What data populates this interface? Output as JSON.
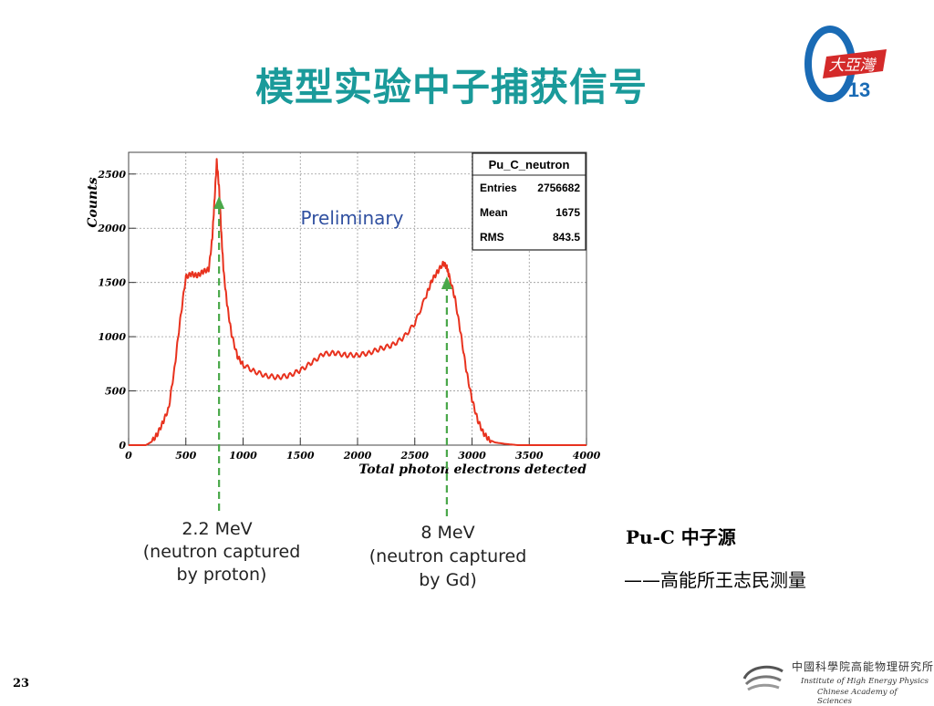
{
  "slide": {
    "title": "模型实验中子捕获信号",
    "page_number": "23",
    "source_label": "Pu-C 中子源",
    "credit": "——高能所王志民测量"
  },
  "logo": {
    "brand_text": "大亞灣",
    "number": "13",
    "theta_color": "#1a6bb5",
    "flag_color": "#d42a2a"
  },
  "institute": {
    "name_cn": "中國科學院高能物理研究所",
    "name_en_1": "Institute of High Energy Physics",
    "name_en_2": "Chinese Academy of Sciences"
  },
  "chart_data": {
    "type": "line",
    "title": "",
    "xlabel": "Total photon electrons detected",
    "ylabel": "Counts",
    "xlim": [
      0,
      4000
    ],
    "ylim": [
      0,
      2700
    ],
    "xticks": [
      0,
      500,
      1000,
      1500,
      2000,
      2500,
      3000,
      3500,
      4000
    ],
    "yticks": [
      0,
      500,
      1000,
      1500,
      2000,
      2500
    ],
    "grid": true,
    "line_color": "#e8321e",
    "series": [
      {
        "x": [
          0,
          150,
          200,
          250,
          300,
          350,
          400,
          450,
          500,
          550,
          600,
          650,
          700,
          730,
          750,
          770,
          790,
          810,
          830,
          860,
          900,
          950,
          1000,
          1100,
          1200,
          1300,
          1400,
          1500,
          1600,
          1700,
          1800,
          1900,
          2000,
          2100,
          2200,
          2300,
          2400,
          2500,
          2600,
          2650,
          2700,
          2750,
          2780,
          2800,
          2850,
          2900,
          2950,
          3000,
          3050,
          3100,
          3150,
          3200,
          3300,
          3400,
          3500,
          3600,
          4000
        ],
        "values": [
          0,
          0,
          30,
          100,
          210,
          340,
          700,
          1150,
          1550,
          1580,
          1560,
          1600,
          1620,
          1900,
          2250,
          2620,
          2380,
          1950,
          1600,
          1300,
          1020,
          820,
          740,
          680,
          640,
          625,
          640,
          690,
          760,
          840,
          850,
          830,
          830,
          850,
          890,
          920,
          990,
          1120,
          1380,
          1520,
          1600,
          1680,
          1640,
          1560,
          1360,
          1040,
          690,
          420,
          230,
          110,
          50,
          25,
          10,
          0,
          0,
          0,
          0
        ]
      }
    ],
    "stats_box": {
      "name": "Pu_C_neutron",
      "rows": [
        {
          "label": "Entries",
          "value": "2756682"
        },
        {
          "label": "Mean",
          "value": "1675"
        },
        {
          "label": "RMS",
          "value": "843.5"
        }
      ]
    },
    "watermark": "Preliminary",
    "annotations": [
      {
        "x": 790,
        "line1": "2.2 MeV",
        "line2": "(neutron captured",
        "line3": "by proton)"
      },
      {
        "x": 2780,
        "line1": "8 MeV",
        "line2": "(neutron captured",
        "line3": "by Gd)"
      }
    ]
  }
}
